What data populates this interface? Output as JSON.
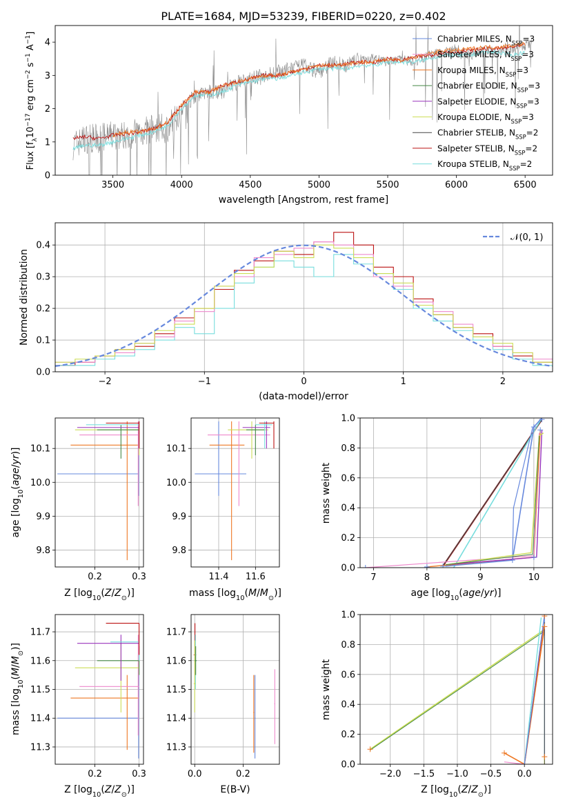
{
  "figure": {
    "title": "PLATE=1684, MJD=53239, FIBERID=0220, z=0.402"
  },
  "colors": {
    "Chabrier MILES": "#6688dd",
    "Salpeter MILES": "#ee88cc",
    "Kroupa MILES": "#ee7722",
    "Chabrier ELODIE": "#448844",
    "Salpeter ELODIE": "#9933bb",
    "Kroupa ELODIE": "#ccdd55",
    "Chabrier STELIB": "#444444",
    "Salpeter STELIB": "#bb1111",
    "Kroupa STELIB": "#77dddd",
    "data": "#808080",
    "gauss": "#6688dd"
  },
  "chart_data": [
    {
      "id": "spectrum",
      "type": "line",
      "xlabel": "wavelength [Angstrom, rest frame]",
      "ylabel": "Flux [f_λ 10^-17 erg cm^-2 s^-1 A^-1]",
      "xlim": [
        3080,
        6700
      ],
      "ylim": [
        0,
        4.5
      ],
      "xticks": [
        3500,
        4000,
        4500,
        5000,
        5500,
        6000,
        6500
      ],
      "yticks": [
        0,
        1,
        2,
        3,
        4
      ],
      "legend_position": "right",
      "legend": [
        "Chabrier MILES, N_SSP=3",
        "Salpeter MILES, N_SSP=3",
        "Kroupa MILES, N_SSP=3",
        "Chabrier ELODIE, N_SSP=3",
        "Salpeter ELODIE, N_SSP=3",
        "Kroupa ELODIE, N_SSP=3",
        "Chabrier STELIB, N_SSP=2",
        "Salpeter STELIB, N_SSP=2",
        "Kroupa STELIB, N_SSP=2"
      ],
      "series": [
        {
          "name": "data",
          "x": [
            3210,
            3300,
            3400,
            3500,
            3600,
            3700,
            3800,
            3900,
            4000,
            4100,
            4200,
            4300,
            4400,
            4500,
            4600,
            4700,
            4800,
            4900,
            5000,
            5100,
            5200,
            5300,
            5400,
            5500,
            5600,
            5700,
            5800,
            5900,
            6000,
            6100,
            6200,
            6300,
            6400,
            6500,
            6550
          ],
          "y": [
            0.9,
            1.1,
            1.1,
            1.2,
            1.2,
            1.3,
            1.4,
            1.4,
            2.0,
            2.4,
            2.5,
            2.5,
            2.8,
            2.9,
            3.0,
            3.1,
            3.2,
            3.3,
            3.1,
            3.4,
            3.3,
            3.5,
            3.5,
            3.4,
            3.5,
            3.4,
            3.6,
            3.7,
            3.8,
            3.6,
            3.8,
            3.7,
            3.8,
            3.9,
            4.0
          ]
        },
        {
          "name": "Salpeter STELIB",
          "x": [
            3210,
            3300,
            3400,
            3500,
            3600,
            3700,
            3800,
            3900,
            4000,
            4100,
            4200,
            4300,
            4400,
            4500,
            4600,
            4700,
            4800,
            4900,
            5000,
            5100,
            5200,
            5300,
            5400,
            5500,
            5600,
            5700,
            5800,
            5900,
            6000,
            6100,
            6200,
            6300,
            6400,
            6500
          ],
          "y": [
            1.1,
            1.15,
            1.1,
            1.2,
            1.25,
            1.3,
            1.4,
            1.6,
            2.1,
            2.5,
            2.5,
            2.7,
            2.8,
            2.9,
            3.0,
            3.0,
            3.1,
            3.2,
            3.3,
            3.3,
            3.35,
            3.4,
            3.4,
            3.5,
            3.45,
            3.55,
            3.6,
            3.7,
            3.7,
            3.75,
            3.8,
            3.8,
            3.85,
            3.9
          ]
        },
        {
          "name": "Kroupa STELIB",
          "x": [
            3210,
            3300,
            3400,
            3500,
            3600,
            3700,
            3800,
            3900,
            4000,
            4100,
            4200,
            4300,
            4400,
            4500,
            4600,
            4700,
            4800,
            4900,
            5000,
            5100,
            5200,
            5300,
            5400,
            5500,
            5600,
            5700,
            5800,
            5900,
            6000,
            6100,
            6200,
            6300,
            6400,
            6500
          ],
          "y": [
            0.8,
            0.9,
            0.9,
            1.0,
            1.1,
            1.2,
            1.3,
            1.5,
            2.0,
            2.4,
            2.4,
            2.5,
            2.7,
            2.8,
            2.9,
            2.9,
            3.0,
            3.1,
            3.2,
            3.2,
            3.2,
            3.3,
            3.3,
            3.4,
            3.4,
            3.4,
            3.5,
            3.6,
            3.6,
            3.6,
            3.7,
            3.7,
            3.6,
            3.7
          ]
        },
        {
          "name": "Kroupa MILES",
          "x": [
            3500,
            3600,
            3700,
            3800,
            3900,
            4000,
            4100,
            4200,
            4300,
            4400,
            4500,
            4600,
            4700,
            4800,
            4900,
            5000,
            5100,
            5200,
            5300,
            5400,
            5500,
            5600,
            5700,
            5800,
            5900,
            6000,
            6100,
            6200,
            6300,
            6400,
            6500
          ],
          "y": [
            1.2,
            1.3,
            1.3,
            1.4,
            1.6,
            2.1,
            2.5,
            2.5,
            2.7,
            2.8,
            2.9,
            3.0,
            3.0,
            3.1,
            3.2,
            3.3,
            3.3,
            3.35,
            3.4,
            3.4,
            3.5,
            3.45,
            3.55,
            3.65,
            3.75,
            3.75,
            3.8,
            3.85,
            3.85,
            3.9,
            3.95
          ]
        }
      ]
    },
    {
      "id": "residual-hist",
      "type": "line",
      "xlabel": "(data-model)/error",
      "ylabel": "Normed distribution",
      "xlim": [
        -2.5,
        2.5
      ],
      "ylim": [
        0,
        0.47
      ],
      "xticks": [
        -2,
        -1,
        0,
        1,
        2
      ],
      "yticks": [
        0.0,
        0.1,
        0.2,
        0.3,
        0.4
      ],
      "grid": true,
      "legend_position": "top-right",
      "legend": [
        "𝒩(0, 1)"
      ],
      "series": [
        {
          "name": "𝒩(0, 1)",
          "function": "normal",
          "mean": 0,
          "sd": 1
        },
        {
          "name": "Salpeter STELIB",
          "bin_edges": [
            -2.5,
            -2.3,
            -2.1,
            -1.9,
            -1.7,
            -1.5,
            -1.3,
            -1.1,
            -0.9,
            -0.7,
            -0.5,
            -0.3,
            -0.1,
            0.1,
            0.3,
            0.5,
            0.7,
            0.9,
            1.1,
            1.3,
            1.5,
            1.7,
            1.9,
            2.1,
            2.3,
            2.5
          ],
          "values": [
            0.02,
            0.03,
            0.05,
            0.07,
            0.08,
            0.12,
            0.17,
            0.2,
            0.26,
            0.32,
            0.35,
            0.38,
            0.37,
            0.41,
            0.44,
            0.4,
            0.33,
            0.3,
            0.23,
            0.18,
            0.14,
            0.12,
            0.08,
            0.05,
            0.03
          ]
        },
        {
          "name": "Kroupa STELIB",
          "bin_edges": [
            -2.5,
            -2.3,
            -2.1,
            -1.9,
            -1.7,
            -1.5,
            -1.3,
            -1.1,
            -0.9,
            -0.7,
            -0.5,
            -0.3,
            -0.1,
            0.1,
            0.3,
            0.5,
            0.7,
            0.9,
            1.1,
            1.3,
            1.5,
            1.7,
            1.9,
            2.1,
            2.3,
            2.5
          ],
          "values": [
            0.02,
            0.02,
            0.04,
            0.05,
            0.07,
            0.1,
            0.14,
            0.12,
            0.2,
            0.28,
            0.33,
            0.35,
            0.33,
            0.3,
            0.37,
            0.34,
            0.31,
            0.26,
            0.2,
            0.16,
            0.13,
            0.1,
            0.07,
            0.04,
            0.02
          ]
        },
        {
          "name": "Salpeter MILES",
          "bin_edges": [
            -2.5,
            -2.3,
            -2.1,
            -1.9,
            -1.7,
            -1.5,
            -1.3,
            -1.1,
            -0.9,
            -0.7,
            -0.5,
            -0.3,
            -0.1,
            0.1,
            0.3,
            0.5,
            0.7,
            0.9,
            1.1,
            1.3,
            1.5,
            1.7,
            1.9,
            2.1,
            2.3,
            2.5
          ],
          "values": [
            0.03,
            0.03,
            0.05,
            0.06,
            0.09,
            0.11,
            0.16,
            0.19,
            0.27,
            0.3,
            0.36,
            0.37,
            0.39,
            0.41,
            0.4,
            0.37,
            0.3,
            0.27,
            0.22,
            0.19,
            0.15,
            0.11,
            0.08,
            0.06,
            0.04
          ]
        },
        {
          "name": "Kroupa ELODIE",
          "bin_edges": [
            -2.5,
            -2.3,
            -2.1,
            -1.9,
            -1.7,
            -1.5,
            -1.3,
            -1.1,
            -0.9,
            -0.7,
            -0.5,
            -0.3,
            -0.1,
            0.1,
            0.3,
            0.5,
            0.7,
            0.9,
            1.1,
            1.3,
            1.5,
            1.7,
            1.9,
            2.1,
            2.3,
            2.5
          ],
          "values": [
            0.03,
            0.04,
            0.05,
            0.07,
            0.09,
            0.13,
            0.15,
            0.2,
            0.27,
            0.31,
            0.33,
            0.38,
            0.36,
            0.4,
            0.39,
            0.36,
            0.31,
            0.28,
            0.21,
            0.18,
            0.14,
            0.11,
            0.09,
            0.06,
            0.03
          ]
        }
      ]
    },
    {
      "id": "age-vs-Z",
      "type": "scatter",
      "xlabel": "Z [log10(Z/Z⊙)]",
      "ylabel": "age  [log10(age/yr)]",
      "xlim": [
        0.11,
        0.31
      ],
      "ylim": [
        9.75,
        10.19
      ],
      "xticks": [
        0.2,
        0.3
      ],
      "yticks": [
        9.8,
        9.9,
        10.0,
        10.1
      ],
      "grid": true
    },
    {
      "id": "age-vs-mass",
      "type": "scatter",
      "xlabel": "mass [log10(M/M⊙)]",
      "xlim": [
        11.25,
        11.73
      ],
      "ylim": [
        9.75,
        10.19
      ],
      "xticks": [
        11.4,
        11.6
      ],
      "yticks": [
        9.8,
        9.9,
        10.0,
        10.1
      ],
      "grid": true
    },
    {
      "id": "mass-weight-vs-age",
      "type": "line",
      "xlabel": "age  [log10(age/yr)]",
      "ylabel": "mass weight",
      "xlim": [
        6.75,
        10.35
      ],
      "ylim": [
        0,
        1
      ],
      "xticks": [
        7,
        8,
        9,
        10
      ],
      "yticks": [
        0.0,
        0.2,
        0.4,
        0.6,
        0.8,
        1.0
      ],
      "grid": true
    },
    {
      "id": "mass-vs-Z",
      "type": "scatter",
      "xlabel": "Z [log10(Z/Z⊙)]",
      "ylabel": "mass [log10(M/M⊙)]",
      "xlim": [
        0.11,
        0.31
      ],
      "ylim": [
        11.24,
        11.76
      ],
      "xticks": [
        0.2,
        0.3
      ],
      "yticks": [
        11.3,
        11.4,
        11.5,
        11.6,
        11.7
      ],
      "grid": true
    },
    {
      "id": "mass-vs-ebv",
      "type": "scatter",
      "xlabel": "E(B-V)",
      "xlim": [
        -0.015,
        0.35
      ],
      "ylim": [
        11.24,
        11.76
      ],
      "xticks": [
        0.0,
        0.2
      ],
      "yticks": [
        11.3,
        11.4,
        11.5,
        11.6,
        11.7
      ],
      "grid": true
    },
    {
      "id": "mass-weight-vs-Z",
      "type": "line",
      "xlabel": "Z [log10(Z/Z⊙)]",
      "ylabel": "mass weight",
      "xlim": [
        -2.45,
        0.42
      ],
      "ylim": [
        0,
        1
      ],
      "xticks": [
        -2.0,
        -1.5,
        -1.0,
        -0.5,
        0.0
      ],
      "yticks": [
        0.0,
        0.2,
        0.4,
        0.6,
        0.8,
        1.0
      ],
      "grid": true
    }
  ]
}
